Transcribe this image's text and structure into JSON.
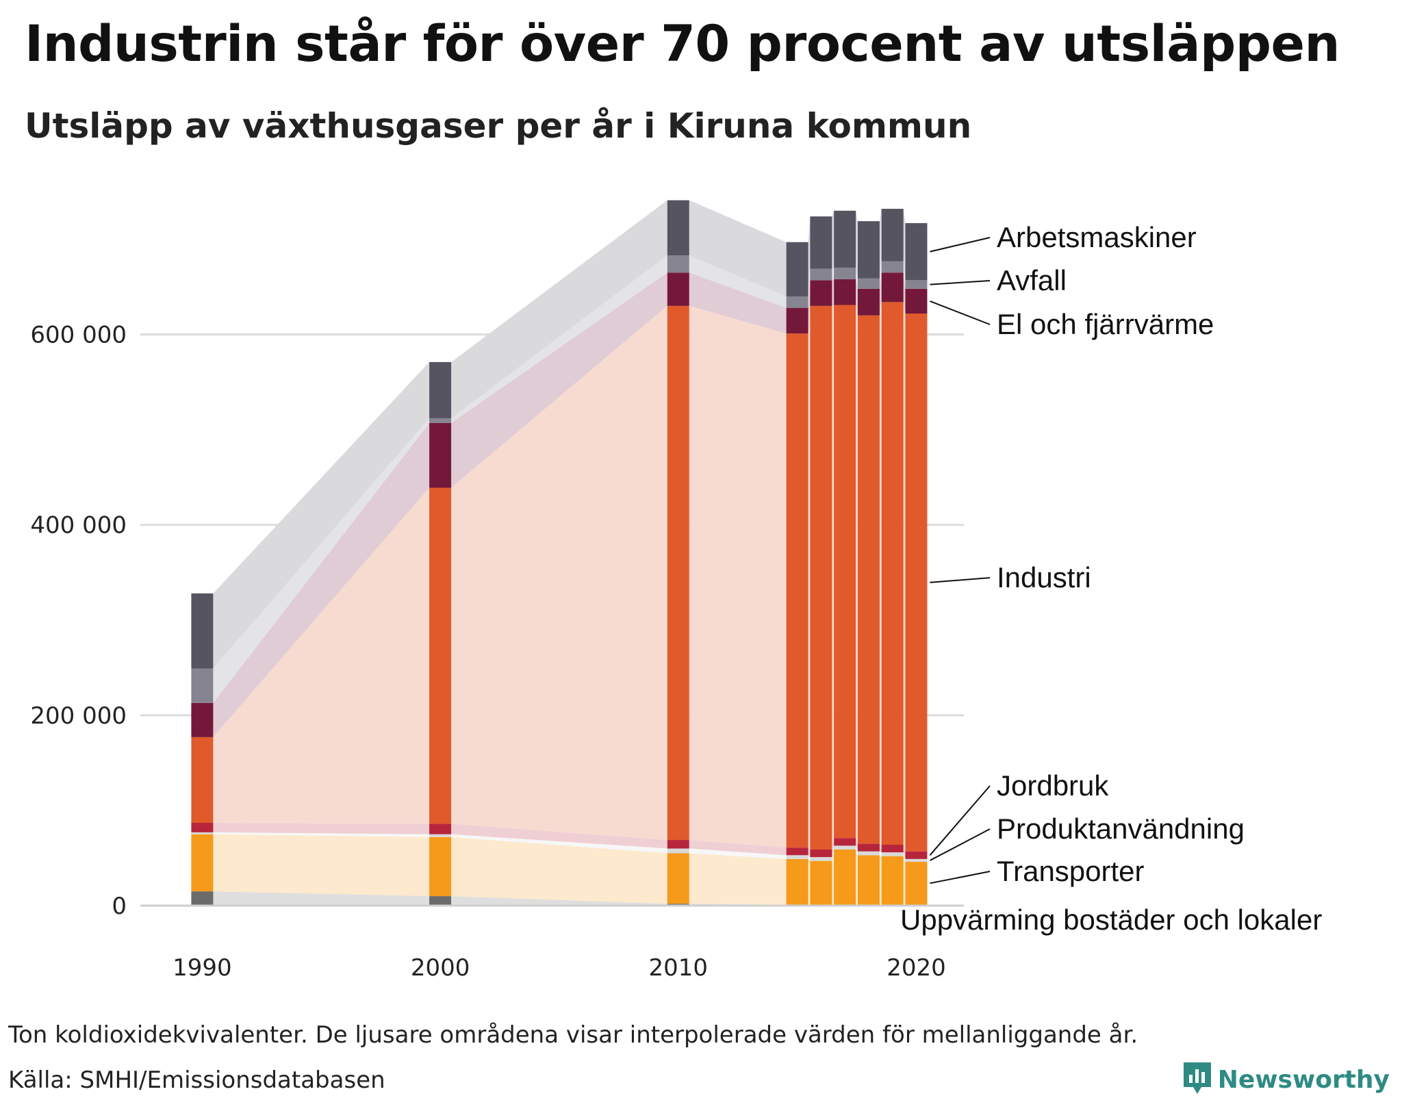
{
  "title": "Industrin står för över 70 procent av utsläppen",
  "subtitle": "Utsläpp av växthusgaser per år i Kiruna kommun",
  "note": "Ton koldioxidekvivalenter. De ljusare områdena visar interpolerade värden för mellanliggande år.",
  "source": "Källa: SMHI/Emissionsdatabasen",
  "brand": {
    "name": "Newsworthy",
    "icon": "newsworthy-logo-icon",
    "color": "#2e8b83"
  },
  "chart_data": {
    "type": "bar",
    "stacked": true,
    "interpolated_areas_between_bars": true,
    "x": [
      1990,
      2000,
      2010,
      2015,
      2016,
      2017,
      2018,
      2019,
      2020
    ],
    "x_ticks": [
      "1990",
      "2000",
      "2010",
      "2020"
    ],
    "x_tick_values": [
      1990,
      2000,
      2010,
      2020
    ],
    "y_ticks": [
      "0",
      "200 000",
      "400 000",
      "600 000"
    ],
    "y_tick_values": [
      0,
      200000,
      400000,
      600000
    ],
    "ylim": [
      0,
      750000
    ],
    "xlim": [
      1987.4,
      2022
    ],
    "grid": "horizontal",
    "series": [
      {
        "name": "Uppvärming bostäder och lokaler",
        "color": "#6b6b6b",
        "values": [
          15000,
          10000,
          2000,
          1000,
          1000,
          1000,
          1000,
          1000,
          1000
        ]
      },
      {
        "name": "Transporter",
        "color": "#f59a1b",
        "values": [
          60000,
          62000,
          53000,
          48000,
          46000,
          58000,
          52000,
          51000,
          45000
        ]
      },
      {
        "name": "Produktanvändning",
        "color": "#d9d9d9",
        "values": [
          2000,
          3000,
          5000,
          4000,
          4000,
          4000,
          4000,
          4000,
          3000
        ]
      },
      {
        "name": "Jordbruk",
        "color": "#b7253b",
        "values": [
          10000,
          11000,
          9000,
          8000,
          8000,
          8000,
          8000,
          8000,
          8000
        ]
      },
      {
        "name": "Industri",
        "color": "#e05a2b",
        "values": [
          90000,
          353000,
          561000,
          540000,
          571000,
          560000,
          555000,
          570000,
          565000
        ]
      },
      {
        "name": "El och fjärrvärme",
        "color": "#74183a",
        "values": [
          36000,
          68000,
          35000,
          27000,
          27000,
          27000,
          28000,
          31000,
          26000
        ]
      },
      {
        "name": "Avfall",
        "color": "#868491",
        "values": [
          36000,
          5000,
          18000,
          12000,
          12000,
          12000,
          11000,
          12000,
          9000
        ]
      },
      {
        "name": "Arbetsmaskiner",
        "color": "#575462",
        "values": [
          79000,
          59000,
          58000,
          57000,
          55000,
          60000,
          60000,
          55000,
          60000
        ]
      }
    ]
  }
}
